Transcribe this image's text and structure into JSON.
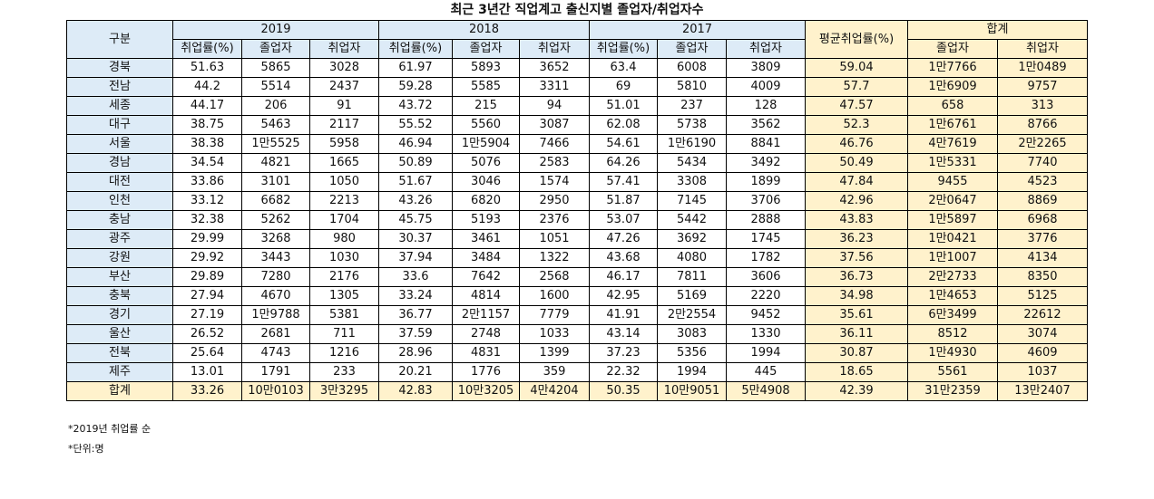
{
  "title": "최근 3년간 직업계고 출신지별 졸업자/취업자수",
  "header": {
    "category_label": "구분",
    "years": [
      "2019",
      "2018",
      "2017"
    ],
    "avg_label": "평균취업률(%)",
    "total_label": "합계",
    "sub_rate": "취업률(%)",
    "sub_grad": "졸업자",
    "sub_emp": "취업자"
  },
  "rows": [
    [
      "경북",
      "51.63",
      "5865",
      "3028",
      "61.97",
      "5893",
      "3652",
      "63.4",
      "6008",
      "3809",
      "59.04",
      "1만7766",
      "1만0489"
    ],
    [
      "전남",
      "44.2",
      "5514",
      "2437",
      "59.28",
      "5585",
      "3311",
      "69",
      "5810",
      "4009",
      "57.7",
      "1만6909",
      "9757"
    ],
    [
      "세종",
      "44.17",
      "206",
      "91",
      "43.72",
      "215",
      "94",
      "51.01",
      "237",
      "128",
      "47.57",
      "658",
      "313"
    ],
    [
      "대구",
      "38.75",
      "5463",
      "2117",
      "55.52",
      "5560",
      "3087",
      "62.08",
      "5738",
      "3562",
      "52.3",
      "1만6761",
      "8766"
    ],
    [
      "서울",
      "38.38",
      "1만5525",
      "5958",
      "46.94",
      "1만5904",
      "7466",
      "54.61",
      "1만6190",
      "8841",
      "46.76",
      "4만7619",
      "2만2265"
    ],
    [
      "경남",
      "34.54",
      "4821",
      "1665",
      "50.89",
      "5076",
      "2583",
      "64.26",
      "5434",
      "3492",
      "50.49",
      "1만5331",
      "7740"
    ],
    [
      "대전",
      "33.86",
      "3101",
      "1050",
      "51.67",
      "3046",
      "1574",
      "57.41",
      "3308",
      "1899",
      "47.84",
      "9455",
      "4523"
    ],
    [
      "인천",
      "33.12",
      "6682",
      "2213",
      "43.26",
      "6820",
      "2950",
      "51.87",
      "7145",
      "3706",
      "42.96",
      "2만0647",
      "8869"
    ],
    [
      "충남",
      "32.38",
      "5262",
      "1704",
      "45.75",
      "5193",
      "2376",
      "53.07",
      "5442",
      "2888",
      "43.83",
      "1만5897",
      "6968"
    ],
    [
      "광주",
      "29.99",
      "3268",
      "980",
      "30.37",
      "3461",
      "1051",
      "47.26",
      "3692",
      "1745",
      "36.23",
      "1만0421",
      "3776"
    ],
    [
      "강원",
      "29.92",
      "3443",
      "1030",
      "37.94",
      "3484",
      "1322",
      "43.68",
      "4080",
      "1782",
      "37.56",
      "1만1007",
      "4134"
    ],
    [
      "부산",
      "29.89",
      "7280",
      "2176",
      "33.6",
      "7642",
      "2568",
      "46.17",
      "7811",
      "3606",
      "36.73",
      "2만2733",
      "8350"
    ],
    [
      "충북",
      "27.94",
      "4670",
      "1305",
      "33.24",
      "4814",
      "1600",
      "42.95",
      "5169",
      "2220",
      "34.98",
      "1만4653",
      "5125"
    ],
    [
      "경기",
      "27.19",
      "1만9788",
      "5381",
      "36.77",
      "2만1157",
      "7779",
      "41.91",
      "2만2554",
      "9452",
      "35.61",
      "6만3499",
      "22612"
    ],
    [
      "울산",
      "26.52",
      "2681",
      "711",
      "37.59",
      "2748",
      "1033",
      "43.14",
      "3083",
      "1330",
      "36.11",
      "8512",
      "3074"
    ],
    [
      "전북",
      "25.64",
      "4743",
      "1216",
      "28.96",
      "4831",
      "1399",
      "37.23",
      "5356",
      "1994",
      "30.87",
      "1만4930",
      "4609"
    ],
    [
      "제주",
      "13.01",
      "1791",
      "233",
      "20.21",
      "1776",
      "359",
      "22.32",
      "1994",
      "445",
      "18.65",
      "5561",
      "1037"
    ]
  ],
  "total_row": [
    "합계",
    "33.26",
    "10만0103",
    "3만3295",
    "42.83",
    "10만3205",
    "4만4204",
    "50.35",
    "10만9051",
    "5만4908",
    "42.39",
    "31만2359",
    "13만2407"
  ],
  "notes": [
    "*2019년 취업률 순",
    "*단위:명"
  ]
}
